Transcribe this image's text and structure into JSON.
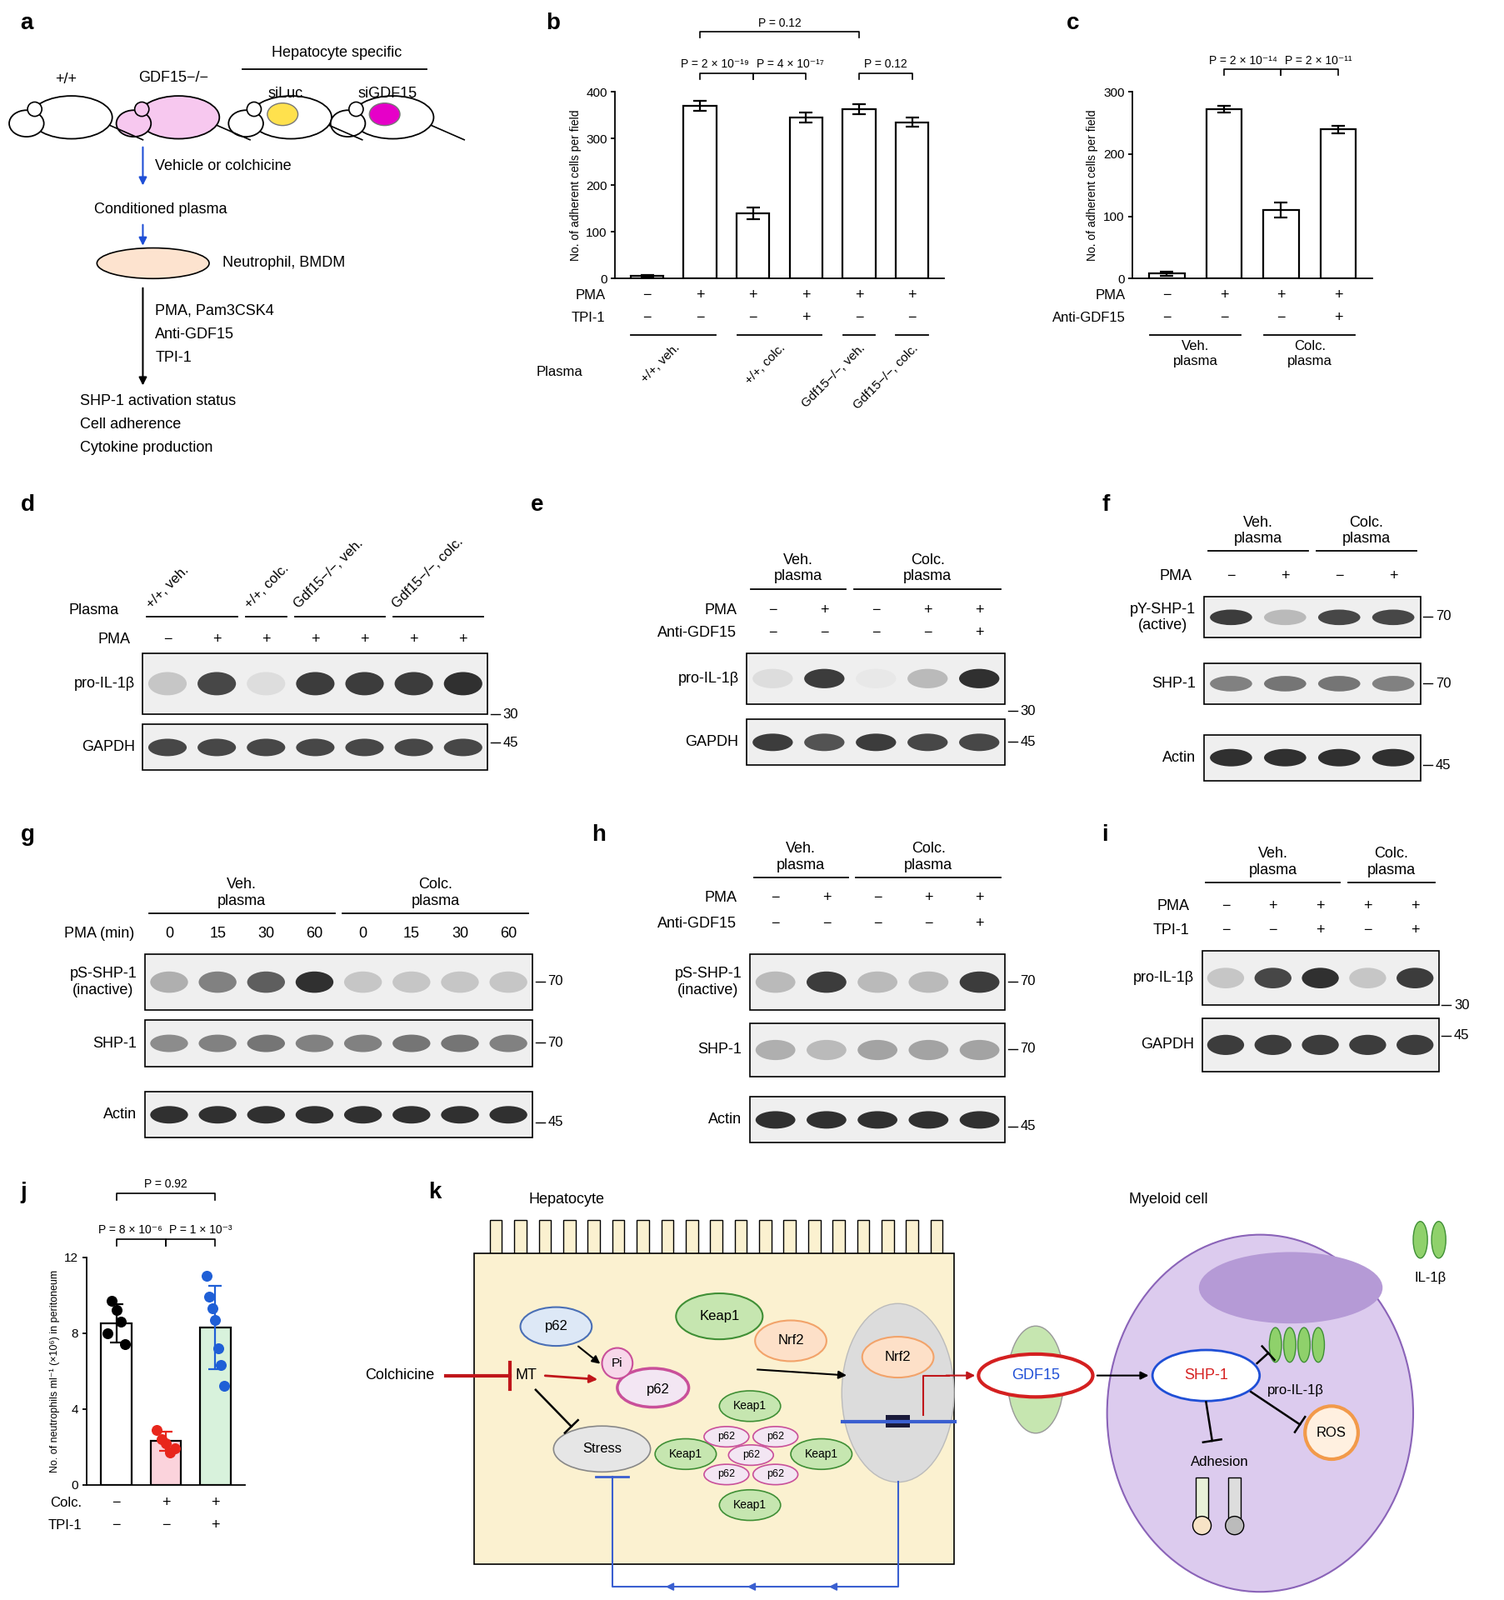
{
  "chart_data": [
    {
      "panel": "b",
      "type": "bar",
      "y_label": "No. of adherent cells per field",
      "categories": [
        null,
        null,
        null,
        null,
        null,
        null
      ],
      "values": [
        5,
        370,
        140,
        345,
        363,
        335
      ],
      "errors": [
        2,
        10,
        12,
        10,
        10,
        10
      ],
      "color": "#ffffff",
      "ylim": [
        0,
        400
      ],
      "yticks": [
        0,
        100,
        200,
        300,
        400
      ],
      "tick_labels": "y",
      "condition_rows": [
        {
          "name": "PMA",
          "values": [
            "−",
            "+",
            "+",
            "+",
            "+",
            "+"
          ]
        },
        {
          "name": "TPI-1",
          "values": [
            "−",
            "−",
            "−",
            "+",
            "−",
            "−"
          ]
        }
      ],
      "group_title": "Plasma",
      "groups": [
        {
          "label": "+/+, veh.",
          "members": [
            0,
            1
          ]
        },
        {
          "label": "+/+, colc.",
          "members": [
            2,
            3
          ]
        },
        {
          "label": "Gdf15−/−, veh.",
          "members": [
            4
          ]
        },
        {
          "label": "Gdf15−/−, colc.",
          "members": [
            5
          ]
        }
      ],
      "comparisons": [
        {
          "label": "P = 2 × 10⁻¹⁹",
          "pair": [
            1,
            2
          ]
        },
        {
          "label": "P = 4 × 10⁻¹⁷",
          "pair": [
            2,
            3
          ]
        },
        {
          "label": "P = 0.12",
          "pair": [
            4,
            5
          ]
        },
        {
          "label": "P = 0.12",
          "pair": [
            1,
            4
          ]
        }
      ]
    },
    {
      "panel": "c",
      "type": "bar",
      "y_label": "No. of adherent cells per field",
      "categories": [
        null,
        null,
        null,
        null
      ],
      "values": [
        8,
        272,
        110,
        240
      ],
      "errors": [
        3,
        5,
        12,
        6
      ],
      "color": "#ffffff",
      "ylim": [
        0,
        300
      ],
      "yticks": [
        0,
        100,
        200,
        300
      ],
      "tick_labels": "y",
      "condition_rows": [
        {
          "name": "PMA",
          "values": [
            "−",
            "+",
            "+",
            "+"
          ]
        },
        {
          "name": "Anti-GDF15",
          "values": [
            "−",
            "−",
            "−",
            "+"
          ]
        }
      ],
      "groups": [
        {
          "label": "Veh.\nplasma",
          "members": [
            0,
            1
          ]
        },
        {
          "label": "Colc.\nplasma",
          "members": [
            2,
            3
          ]
        }
      ],
      "comparisons": [
        {
          "label": "P = 2 × 10⁻¹⁴",
          "pair": [
            1,
            2
          ]
        },
        {
          "label": "P = 2 × 10⁻¹¹",
          "pair": [
            2,
            3
          ]
        }
      ]
    },
    {
      "panel": "j",
      "type": "bar",
      "y_label": "No. of neutrophils ml⁻¹ (×10⁶) in peritoneum",
      "categories": [
        null,
        null,
        null
      ],
      "values": [
        8.5,
        2.3,
        8.3
      ],
      "errors": [
        1.0,
        0.5,
        2.2
      ],
      "colors": [
        "#ffffff",
        "#fbd3dc",
        "#d8f2dc"
      ],
      "points": [
        {
          "color": "#000000",
          "values": [
            8.0,
            9.7,
            9.2,
            8.6,
            7.4
          ]
        },
        {
          "color": "#e8261c",
          "values": [
            2.9,
            2.4,
            2.2,
            1.7,
            1.9
          ]
        },
        {
          "color": "#1f5fd6",
          "values": [
            11.0,
            9.9,
            9.3,
            8.7,
            7.2,
            6.3,
            5.2
          ]
        }
      ],
      "ylim": [
        0,
        12
      ],
      "yticks": [
        0,
        4,
        8,
        12
      ],
      "tick_labels": "y",
      "condition_rows": [
        {
          "name": "Colc.",
          "values": [
            "−",
            "+",
            "+"
          ]
        },
        {
          "name": "TPI-1",
          "values": [
            "−",
            "−",
            "+"
          ]
        }
      ],
      "comparisons": [
        {
          "label": "P = 8 × 10⁻⁶",
          "pair": [
            0,
            1
          ]
        },
        {
          "label": "P = 1 × 10⁻³",
          "pair": [
            1,
            2
          ]
        },
        {
          "label": "P = 0.92",
          "pair": [
            0,
            2
          ]
        }
      ]
    }
  ],
  "panels": [
    {
      "panel": "a",
      "type": "workflow",
      "mice": [
        {
          "label": "+/+"
        },
        {
          "label": "GDF15−/−"
        },
        {
          "label": "siLuc"
        },
        {
          "label": "siGDF15"
        }
      ],
      "bracket_label": "Hepatocyte specific",
      "steps": [
        "Vehicle or colchicine",
        "Conditioned plasma",
        "Neutrophil, BMDM"
      ],
      "treatments": [
        "PMA, Pam3CSK4",
        "Anti-GDF15",
        "TPI-1"
      ],
      "readouts": [
        "SHP-1 activation status",
        "Cell adherence",
        "Cytokine production"
      ]
    },
    {
      "panel": "d",
      "type": "western_blot",
      "group_title": "Plasma",
      "groups": [
        {
          "label": "+/+, veh.",
          "members": [
            0,
            1
          ]
        },
        {
          "label": "+/+, colc.",
          "members": [
            2
          ]
        },
        {
          "label": "Gdf15−/−, veh.",
          "members": [
            3,
            4
          ]
        },
        {
          "label": "Gdf15−/−, colc.",
          "members": [
            5,
            6
          ]
        }
      ],
      "condition_rows": [
        {
          "name": "PMA",
          "values": [
            "−",
            "+",
            "+",
            "+",
            "+",
            "+",
            "+"
          ]
        }
      ],
      "rows": [
        {
          "name": "pro-IL-1β",
          "band_intensity": [
            0.25,
            0.8,
            0.15,
            0.85,
            0.85,
            0.85,
            0.9
          ],
          "marker": 30
        },
        {
          "name": "GAPDH",
          "band_intensity": [
            0.8,
            0.8,
            0.8,
            0.8,
            0.8,
            0.8,
            0.8
          ],
          "marker": 45
        }
      ]
    },
    {
      "panel": "e",
      "type": "western_blot",
      "groups": [
        {
          "label": "Veh.\nplasma",
          "members": [
            0,
            1
          ]
        },
        {
          "label": "Colc.\nplasma",
          "members": [
            2,
            3,
            4
          ]
        }
      ],
      "condition_rows": [
        {
          "name": "PMA",
          "values": [
            "−",
            "+",
            "−",
            "+",
            "+"
          ]
        },
        {
          "name": "Anti-GDF15",
          "values": [
            "−",
            "−",
            "−",
            "−",
            "+"
          ]
        }
      ],
      "rows": [
        {
          "name": "pro-IL-1β",
          "band_intensity": [
            0.15,
            0.85,
            0.1,
            0.3,
            0.9
          ],
          "marker": 30
        },
        {
          "name": "GAPDH",
          "band_intensity": [
            0.85,
            0.75,
            0.85,
            0.8,
            0.8
          ],
          "marker": 45
        }
      ]
    },
    {
      "panel": "f",
      "type": "western_blot",
      "groups": [
        {
          "label": "Veh.\nplasma",
          "members": [
            0,
            1
          ]
        },
        {
          "label": "Colc.\nplasma",
          "members": [
            2,
            3
          ]
        }
      ],
      "condition_rows": [
        {
          "name": "PMA",
          "values": [
            "−",
            "+",
            "−",
            "+"
          ]
        }
      ],
      "rows": [
        {
          "name": "pY-SHP-1\n(active)",
          "band_intensity": [
            0.85,
            0.3,
            0.8,
            0.8
          ],
          "marker": 70
        },
        {
          "name": "SHP-1",
          "band_intensity": [
            0.55,
            0.6,
            0.6,
            0.55
          ],
          "marker": 70
        },
        {
          "name": "Actin",
          "band_intensity": [
            0.9,
            0.9,
            0.9,
            0.9
          ],
          "marker": 45
        }
      ]
    },
    {
      "panel": "g",
      "type": "western_blot",
      "groups": [
        {
          "label": "Veh.\nplasma",
          "members": [
            0,
            1,
            2,
            3
          ]
        },
        {
          "label": "Colc.\nplasma",
          "members": [
            4,
            5,
            6,
            7
          ]
        }
      ],
      "condition_rows": [
        {
          "name": "PMA (min)",
          "values": [
            0,
            15,
            30,
            60,
            0,
            15,
            30,
            60
          ]
        }
      ],
      "rows": [
        {
          "name": "pS-SHP-1\n(inactive)",
          "band_intensity": [
            0.35,
            0.55,
            0.7,
            0.9,
            0.25,
            0.25,
            0.25,
            0.25
          ],
          "marker": 70
        },
        {
          "name": "SHP-1",
          "band_intensity": [
            0.5,
            0.55,
            0.6,
            0.55,
            0.55,
            0.6,
            0.6,
            0.55
          ],
          "marker": 70
        },
        {
          "name": "Actin",
          "band_intensity": [
            0.9,
            0.9,
            0.9,
            0.9,
            0.9,
            0.9,
            0.9,
            0.9
          ],
          "marker": 45
        }
      ]
    },
    {
      "panel": "h",
      "type": "western_blot",
      "groups": [
        {
          "label": "Veh.\nplasma",
          "members": [
            0,
            1
          ]
        },
        {
          "label": "Colc.\nplasma",
          "members": [
            2,
            3,
            4
          ]
        }
      ],
      "condition_rows": [
        {
          "name": "PMA",
          "values": [
            "−",
            "+",
            "−",
            "+",
            "+"
          ]
        },
        {
          "name": "Anti-GDF15",
          "values": [
            "−",
            "−",
            "−",
            "−",
            "+"
          ]
        }
      ],
      "rows": [
        {
          "name": "pS-SHP-1\n(inactive)",
          "band_intensity": [
            0.3,
            0.85,
            0.3,
            0.3,
            0.85
          ],
          "marker": 70
        },
        {
          "name": "SHP-1",
          "band_intensity": [
            0.35,
            0.3,
            0.4,
            0.4,
            0.4
          ],
          "marker": 70
        },
        {
          "name": "Actin",
          "band_intensity": [
            0.9,
            0.9,
            0.9,
            0.9,
            0.9
          ],
          "marker": 45
        }
      ]
    },
    {
      "panel": "i",
      "type": "western_blot",
      "groups": [
        {
          "label": "Veh.\nplasma",
          "members": [
            0,
            1,
            2
          ]
        },
        {
          "label": "Colc.\nplasma",
          "members": [
            3,
            4
          ]
        }
      ],
      "condition_rows": [
        {
          "name": "PMA",
          "values": [
            "−",
            "+",
            "+",
            "+",
            "+"
          ]
        },
        {
          "name": "TPI-1",
          "values": [
            "−",
            "−",
            "+",
            "−",
            "+"
          ]
        }
      ],
      "rows": [
        {
          "name": "pro-IL-1β",
          "band_intensity": [
            0.25,
            0.8,
            0.9,
            0.25,
            0.85
          ],
          "marker": 30
        },
        {
          "name": "GAPDH",
          "band_intensity": [
            0.85,
            0.85,
            0.85,
            0.85,
            0.85
          ],
          "marker": 45
        }
      ]
    },
    {
      "panel": "k",
      "type": "pathway",
      "cell_titles": [
        "Hepatocyte",
        "Myeloid cell"
      ],
      "drug": "Colchicine",
      "microtubule": "MT",
      "p62": "p62",
      "phospho": "Pi",
      "keap1": "Keap1",
      "nrf2": "Nrf2",
      "stress": "Stress",
      "secreted": "GDF15",
      "phosphatase": "SHP-1",
      "adhesion": "Adhesion",
      "ros": "ROS",
      "pro_cytokine": "pro-IL-1β",
      "cytokine": "IL-1β"
    }
  ]
}
